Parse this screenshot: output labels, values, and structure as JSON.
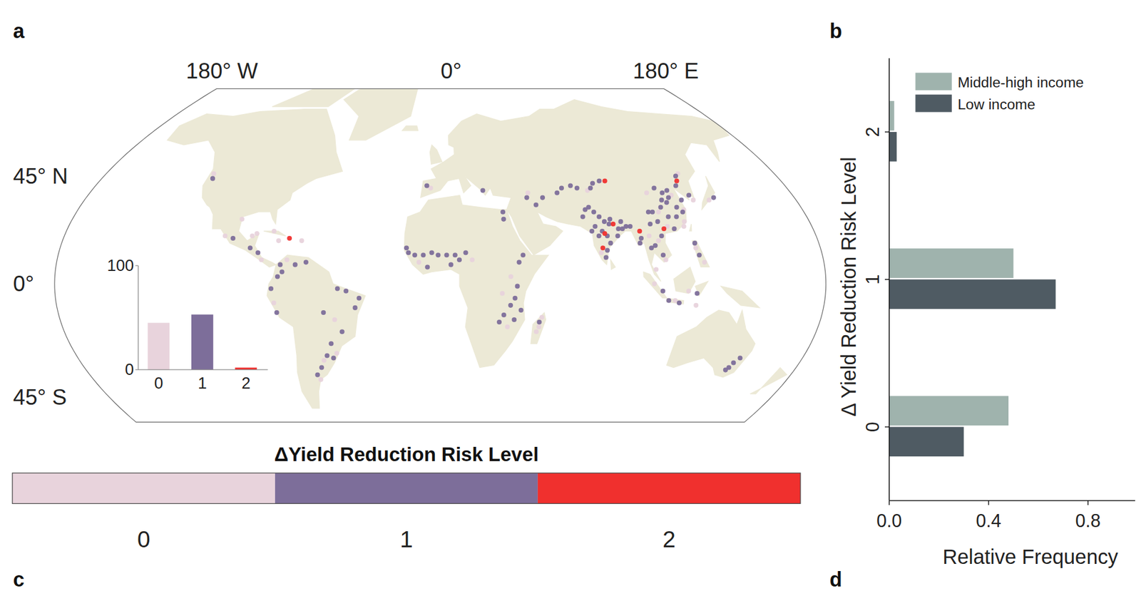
{
  "panel_labels": [
    "a",
    "b",
    "c",
    "d"
  ],
  "chart_data": [
    {
      "type": "map_scatter",
      "lon_labels": [
        "180° W",
        "0°",
        "180° E"
      ],
      "lat_labels": [
        "45° N",
        "0°",
        "45° S"
      ],
      "colorbar": {
        "title": "ΔYield Reduction Risk Level",
        "categories": [
          0,
          1,
          2
        ],
        "colors": [
          "#e8d3dc",
          "#7d6e9a",
          "#f0302e"
        ]
      },
      "points": {
        "lon": [
          -122,
          -121,
          -97,
          -90,
          -88,
          -99,
          -103,
          -77,
          -72,
          -90,
          -86,
          -84,
          -74,
          -75,
          -68,
          -72,
          -76,
          -63,
          -79,
          -78,
          -77,
          -48,
          -44,
          -38,
          -40,
          -55,
          -50,
          -47,
          -53,
          -51,
          -53,
          -58,
          -56,
          -60,
          -62,
          -63,
          -7,
          -5,
          22,
          31,
          31,
          44,
          48,
          52,
          45,
          63,
          68,
          71,
          60,
          80,
          84,
          87,
          78,
          76,
          72,
          74,
          70,
          76,
          78,
          80,
          82,
          84,
          86,
          88,
          78,
          76,
          80,
          81,
          79,
          78,
          77,
          75,
          73,
          85,
          88,
          90,
          92,
          79,
          83,
          76,
          96,
          95,
          96,
          100,
          102,
          105,
          106,
          106,
          104,
          103,
          105,
          108,
          110,
          112,
          114,
          116,
          118,
          120,
          117,
          114,
          112,
          113,
          110,
          108,
          106,
          102,
          116,
          119,
          121,
          118,
          123,
          126,
          125,
          128,
          122,
          111,
          106,
          127,
          128,
          139,
          136,
          121,
          122,
          124,
          121,
          107,
          110,
          112,
          100,
          104,
          120,
          116,
          120,
          -15,
          -12,
          -8,
          -4,
          -1,
          3,
          7,
          9,
          12,
          -10,
          -6,
          5,
          15,
          -16,
          37,
          39,
          33,
          36,
          35,
          33,
          30,
          35,
          32,
          28,
          38,
          29,
          47,
          48,
          46,
          47,
          146,
          147,
          149,
          145,
          118,
          100,
          101,
          -66,
          -80
        ],
        "lat": [
          46,
          44,
          27,
          20,
          21,
          19,
          20,
          18,
          19,
          15,
          13,
          10,
          5,
          8,
          8,
          10,
          3,
          9,
          -2,
          -8,
          -12,
          -2,
          -3,
          -6,
          -10,
          -12,
          -15,
          -20,
          -25,
          -29,
          -31,
          -32,
          -30,
          -35,
          -40,
          -38,
          41,
          40,
          39,
          30,
          27,
          36,
          33,
          36,
          38,
          40,
          41,
          40,
          38,
          42,
          43,
          43,
          40,
          39,
          31,
          32,
          28,
          30,
          28,
          26,
          25,
          25,
          23,
          23,
          22,
          20,
          20,
          17,
          14,
          11,
          15,
          24,
          22,
          20,
          26,
          24,
          24,
          21,
          27,
          13,
          19,
          17,
          22,
          15,
          16,
          12,
          20,
          10,
          18,
          30,
          30,
          30,
          32,
          35,
          34,
          36,
          32,
          30,
          39,
          38,
          28,
          23,
          24,
          23,
          26,
          25,
          28,
          26,
          31,
          37,
          41,
          45,
          43,
          46,
          35,
          40,
          38,
          37,
          35,
          36,
          35,
          15,
          12,
          9,
          17,
          -7,
          -7,
          -8,
          0,
          -3,
          -4,
          -3,
          -9,
          13,
          12,
          12,
          13,
          12,
          12,
          12,
          10,
          13,
          9,
          7,
          8,
          10,
          15,
          9,
          12,
          3,
          -1,
          -6,
          -9,
          -13,
          -15,
          -18,
          -16,
          -11,
          -4,
          -18,
          -14,
          -20,
          -16,
          -35,
          -33,
          -31,
          -36,
          24,
          20,
          6,
          18,
          22
        ],
        "level": [
          0,
          1,
          0,
          0,
          0,
          1,
          0,
          0,
          2,
          1,
          1,
          0,
          1,
          1,
          1,
          0,
          1,
          1,
          1,
          0,
          1,
          1,
          1,
          1,
          1,
          1,
          0,
          1,
          1,
          0,
          1,
          0,
          1,
          1,
          0,
          1,
          1,
          0,
          1,
          1,
          1,
          1,
          1,
          1,
          0,
          1,
          1,
          1,
          1,
          1,
          1,
          2,
          1,
          0,
          1,
          1,
          1,
          1,
          1,
          1,
          1,
          2,
          1,
          1,
          1,
          1,
          1,
          1,
          1,
          1,
          2,
          1,
          1,
          1,
          1,
          1,
          1,
          2,
          1,
          0,
          1,
          1,
          2,
          1,
          1,
          1,
          1,
          0,
          0,
          1,
          1,
          0,
          1,
          1,
          1,
          1,
          1,
          1,
          1,
          1,
          1,
          1,
          0,
          2,
          1,
          1,
          1,
          0,
          0,
          0,
          1,
          1,
          2,
          0,
          1,
          1,
          0,
          1,
          0,
          1,
          0,
          0,
          1,
          0,
          1,
          1,
          0,
          1,
          0,
          1,
          1,
          0,
          0,
          1,
          1,
          1,
          1,
          1,
          1,
          1,
          1,
          1,
          0,
          1,
          1,
          0,
          1,
          1,
          1,
          0,
          1,
          1,
          1,
          1,
          1,
          0,
          1,
          1,
          0,
          0,
          0,
          0,
          1,
          1,
          1,
          1,
          1,
          0,
          0,
          0,
          0,
          0
        ]
      }
    },
    {
      "type": "bar",
      "categories": [
        0,
        1,
        2
      ],
      "values": [
        45,
        53,
        2
      ],
      "colors": [
        "#e8d3dc",
        "#7d6e9a",
        "#f0302e"
      ],
      "ylim": [
        0,
        100
      ],
      "yticks": [
        0,
        100
      ]
    },
    {
      "type": "bar",
      "orientation": "horizontal",
      "categories": [
        0,
        1,
        2
      ],
      "series": [
        {
          "name": "Middle-high income",
          "color": "#9fb3ad",
          "values": [
            0.48,
            0.5,
            0.02
          ]
        },
        {
          "name": "Low income",
          "color": "#4f5b63",
          "values": [
            0.3,
            0.67,
            0.03
          ]
        }
      ],
      "xlabel": "Relative Frequency",
      "ylabel": "Δ Yield Reduction Risk Level",
      "xlim": [
        0,
        0.99
      ],
      "xticks": [
        {
          "value": 0,
          "label": "0.0"
        },
        {
          "value": 0.4,
          "label": "0.4"
        },
        {
          "value": 0.8,
          "label": "0.8"
        }
      ],
      "ylim": [
        -0.5,
        2.5
      ],
      "legend": "upper right"
    }
  ]
}
